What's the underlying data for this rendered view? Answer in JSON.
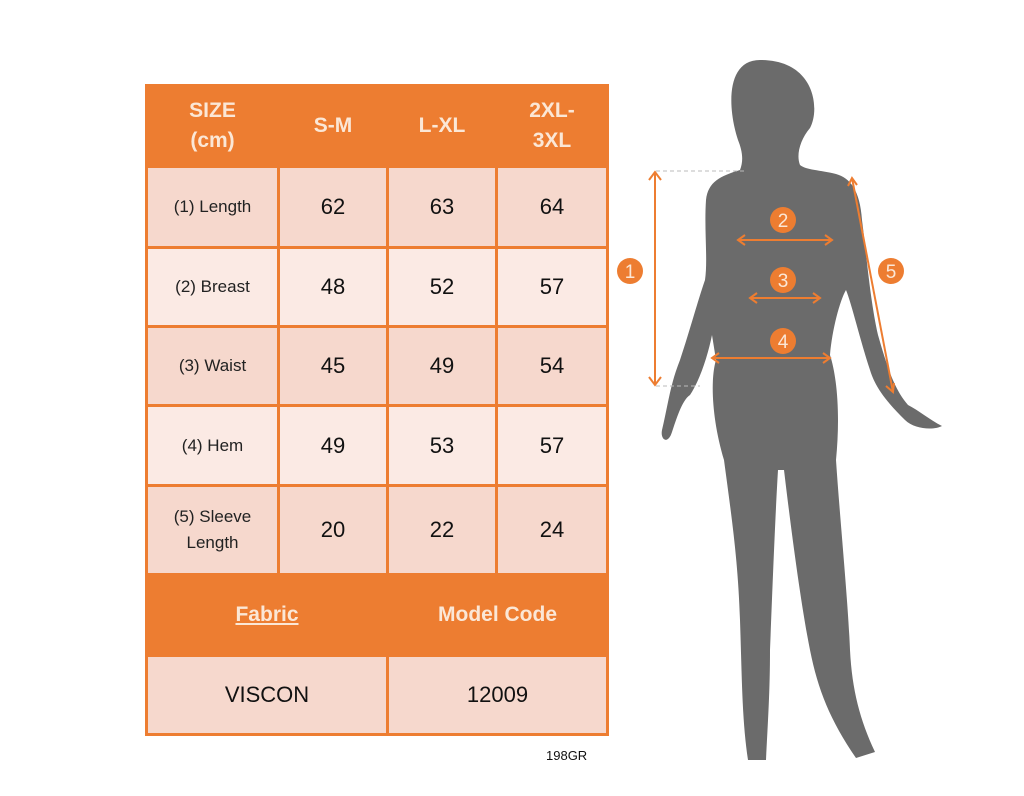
{
  "table": {
    "header": [
      "SIZE (cm)",
      "S-M",
      "L-XL",
      "2XL- 3XL"
    ],
    "rows": [
      {
        "label": "(1) Length",
        "values": [
          "62",
          "63",
          "64"
        ]
      },
      {
        "label": "(2) Breast",
        "values": [
          "48",
          "52",
          "57"
        ]
      },
      {
        "label": "(3) Waist",
        "values": [
          "45",
          "49",
          "54"
        ]
      },
      {
        "label": "(4) Hem",
        "values": [
          "49",
          "53",
          "57"
        ]
      },
      {
        "label": "(5) Sleeve Length",
        "values": [
          "20",
          "22",
          "24"
        ]
      }
    ],
    "fabric_label": "Fabric",
    "model_code_label": "Model Code",
    "fabric_value": "VISCON",
    "model_code_value": "12009"
  },
  "figure": {
    "markers": [
      "1",
      "2",
      "3",
      "4",
      "5"
    ]
  },
  "footer_code": "198GR",
  "colors": {
    "accent": "#ed7d31",
    "silhouette": "#6b6b6b",
    "row_dark": "#f6d8cd",
    "row_light": "#fbeae4"
  }
}
